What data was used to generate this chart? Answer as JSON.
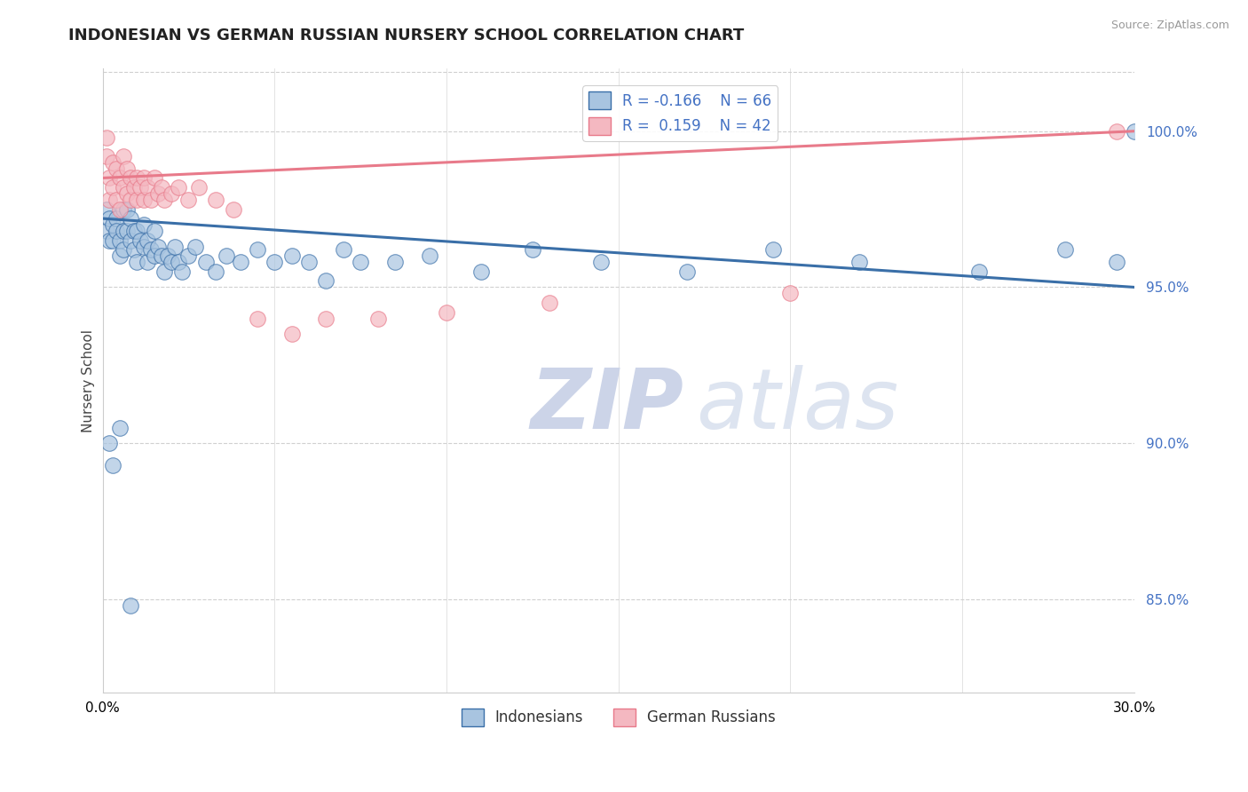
{
  "title": "INDONESIAN VS GERMAN RUSSIAN NURSERY SCHOOL CORRELATION CHART",
  "source_text": "Source: ZipAtlas.com",
  "ylabel": "Nursery School",
  "xlim": [
    0.0,
    0.3
  ],
  "ylim": [
    0.82,
    1.02
  ],
  "yticks": [
    0.85,
    0.9,
    0.95,
    1.0
  ],
  "xticks": [
    0.0,
    0.3
  ],
  "xtick_labels": [
    "0.0%",
    "30.0%"
  ],
  "R_indonesian": -0.166,
  "N_indonesian": 66,
  "R_german_russian": 0.159,
  "N_german_russian": 42,
  "indonesian_color": "#a8c4e0",
  "german_russian_color": "#f4b8c1",
  "indonesian_line_color": "#3a6fa8",
  "german_russian_line_color": "#e87a8a",
  "legend_label_indonesian": "Indonesians",
  "legend_label_german_russian": "German Russians",
  "watermark_zip": "ZIP",
  "watermark_atlas": "atlas",
  "indo_trend_x0": 0.0,
  "indo_trend_y0": 0.972,
  "indo_trend_x1": 0.3,
  "indo_trend_y1": 0.95,
  "ger_trend_x0": 0.0,
  "ger_trend_y0": 0.985,
  "ger_trend_x1": 0.3,
  "ger_trend_y1": 1.0,
  "indonesian_x": [
    0.001,
    0.001,
    0.002,
    0.002,
    0.003,
    0.003,
    0.004,
    0.004,
    0.005,
    0.005,
    0.006,
    0.006,
    0.006,
    0.007,
    0.007,
    0.008,
    0.008,
    0.009,
    0.009,
    0.01,
    0.01,
    0.011,
    0.012,
    0.012,
    0.013,
    0.013,
    0.014,
    0.015,
    0.015,
    0.016,
    0.017,
    0.018,
    0.019,
    0.02,
    0.021,
    0.022,
    0.023,
    0.025,
    0.027,
    0.03,
    0.033,
    0.036,
    0.04,
    0.045,
    0.05,
    0.055,
    0.06,
    0.065,
    0.07,
    0.075,
    0.085,
    0.095,
    0.11,
    0.125,
    0.145,
    0.17,
    0.195,
    0.22,
    0.255,
    0.28,
    0.295,
    0.3,
    0.002,
    0.003,
    0.005,
    0.008
  ],
  "indonesian_y": [
    0.975,
    0.968,
    0.972,
    0.965,
    0.97,
    0.965,
    0.972,
    0.968,
    0.965,
    0.96,
    0.975,
    0.968,
    0.962,
    0.975,
    0.968,
    0.972,
    0.965,
    0.968,
    0.962,
    0.968,
    0.958,
    0.965,
    0.97,
    0.963,
    0.965,
    0.958,
    0.962,
    0.968,
    0.96,
    0.963,
    0.96,
    0.955,
    0.96,
    0.958,
    0.963,
    0.958,
    0.955,
    0.96,
    0.963,
    0.958,
    0.955,
    0.96,
    0.958,
    0.962,
    0.958,
    0.96,
    0.958,
    0.952,
    0.962,
    0.958,
    0.958,
    0.96,
    0.955,
    0.962,
    0.958,
    0.955,
    0.962,
    0.958,
    0.955,
    0.962,
    0.958,
    1.0,
    0.9,
    0.893,
    0.905,
    0.848
  ],
  "german_russian_x": [
    0.001,
    0.001,
    0.002,
    0.002,
    0.003,
    0.003,
    0.004,
    0.004,
    0.005,
    0.005,
    0.006,
    0.006,
    0.007,
    0.007,
    0.008,
    0.008,
    0.009,
    0.01,
    0.01,
    0.011,
    0.012,
    0.012,
    0.013,
    0.014,
    0.015,
    0.016,
    0.017,
    0.018,
    0.02,
    0.022,
    0.025,
    0.028,
    0.033,
    0.038,
    0.045,
    0.055,
    0.065,
    0.08,
    0.1,
    0.13,
    0.2,
    0.295
  ],
  "german_russian_y": [
    0.998,
    0.992,
    0.985,
    0.978,
    0.99,
    0.982,
    0.988,
    0.978,
    0.985,
    0.975,
    0.992,
    0.982,
    0.988,
    0.98,
    0.985,
    0.978,
    0.982,
    0.985,
    0.978,
    0.982,
    0.985,
    0.978,
    0.982,
    0.978,
    0.985,
    0.98,
    0.982,
    0.978,
    0.98,
    0.982,
    0.978,
    0.982,
    0.978,
    0.975,
    0.94,
    0.935,
    0.94,
    0.94,
    0.942,
    0.945,
    0.948,
    1.0
  ]
}
